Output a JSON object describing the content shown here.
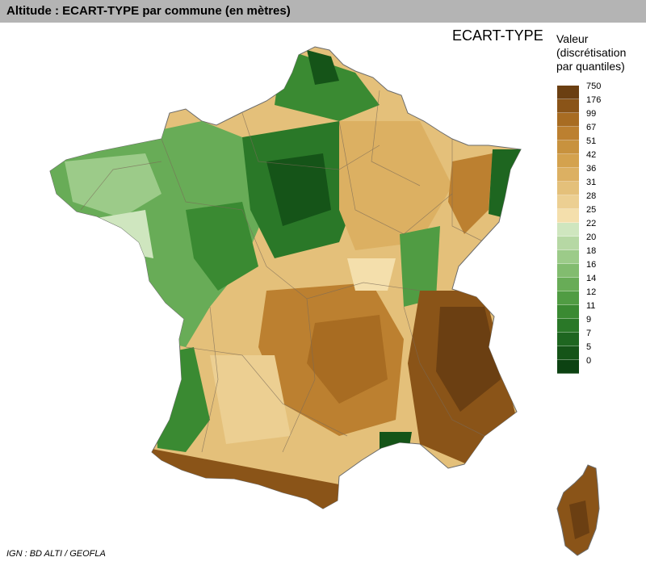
{
  "header": {
    "title": "Altitude : ECART-TYPE par commune (en mètres)"
  },
  "map": {
    "title": "ECART-TYPE"
  },
  "legend": {
    "title_lines": [
      "Valeur",
      "(discrétisation",
      "par quantiles)"
    ],
    "classes": [
      {
        "label": "750",
        "color": "#6b3f12"
      },
      {
        "label": "176",
        "color": "#8a5418"
      },
      {
        "label": "99",
        "color": "#a86c22"
      },
      {
        "label": "67",
        "color": "#bc8030"
      },
      {
        "label": "51",
        "color": "#c8923e"
      },
      {
        "label": "42",
        "color": "#d4a24e"
      },
      {
        "label": "36",
        "color": "#dcb062"
      },
      {
        "label": "31",
        "color": "#e4c07a"
      },
      {
        "label": "28",
        "color": "#eccf92"
      },
      {
        "label": "25",
        "color": "#f4dfac"
      },
      {
        "label": "22",
        "color": "#cfe6bf"
      },
      {
        "label": "20",
        "color": "#b6d8a4"
      },
      {
        "label": "18",
        "color": "#9ccb89"
      },
      {
        "label": "16",
        "color": "#82bc6f"
      },
      {
        "label": "14",
        "color": "#68ac57"
      },
      {
        "label": "12",
        "color": "#509c43"
      },
      {
        "label": "11",
        "color": "#3a8a32"
      },
      {
        "label": "9",
        "color": "#2a7828"
      },
      {
        "label": "7",
        "color": "#1e6620"
      },
      {
        "label": "5",
        "color": "#155418"
      },
      {
        "label": "0",
        "color": "#0c4212"
      }
    ]
  },
  "source": {
    "text": "IGN : BD ALTI / GEOFLA"
  }
}
